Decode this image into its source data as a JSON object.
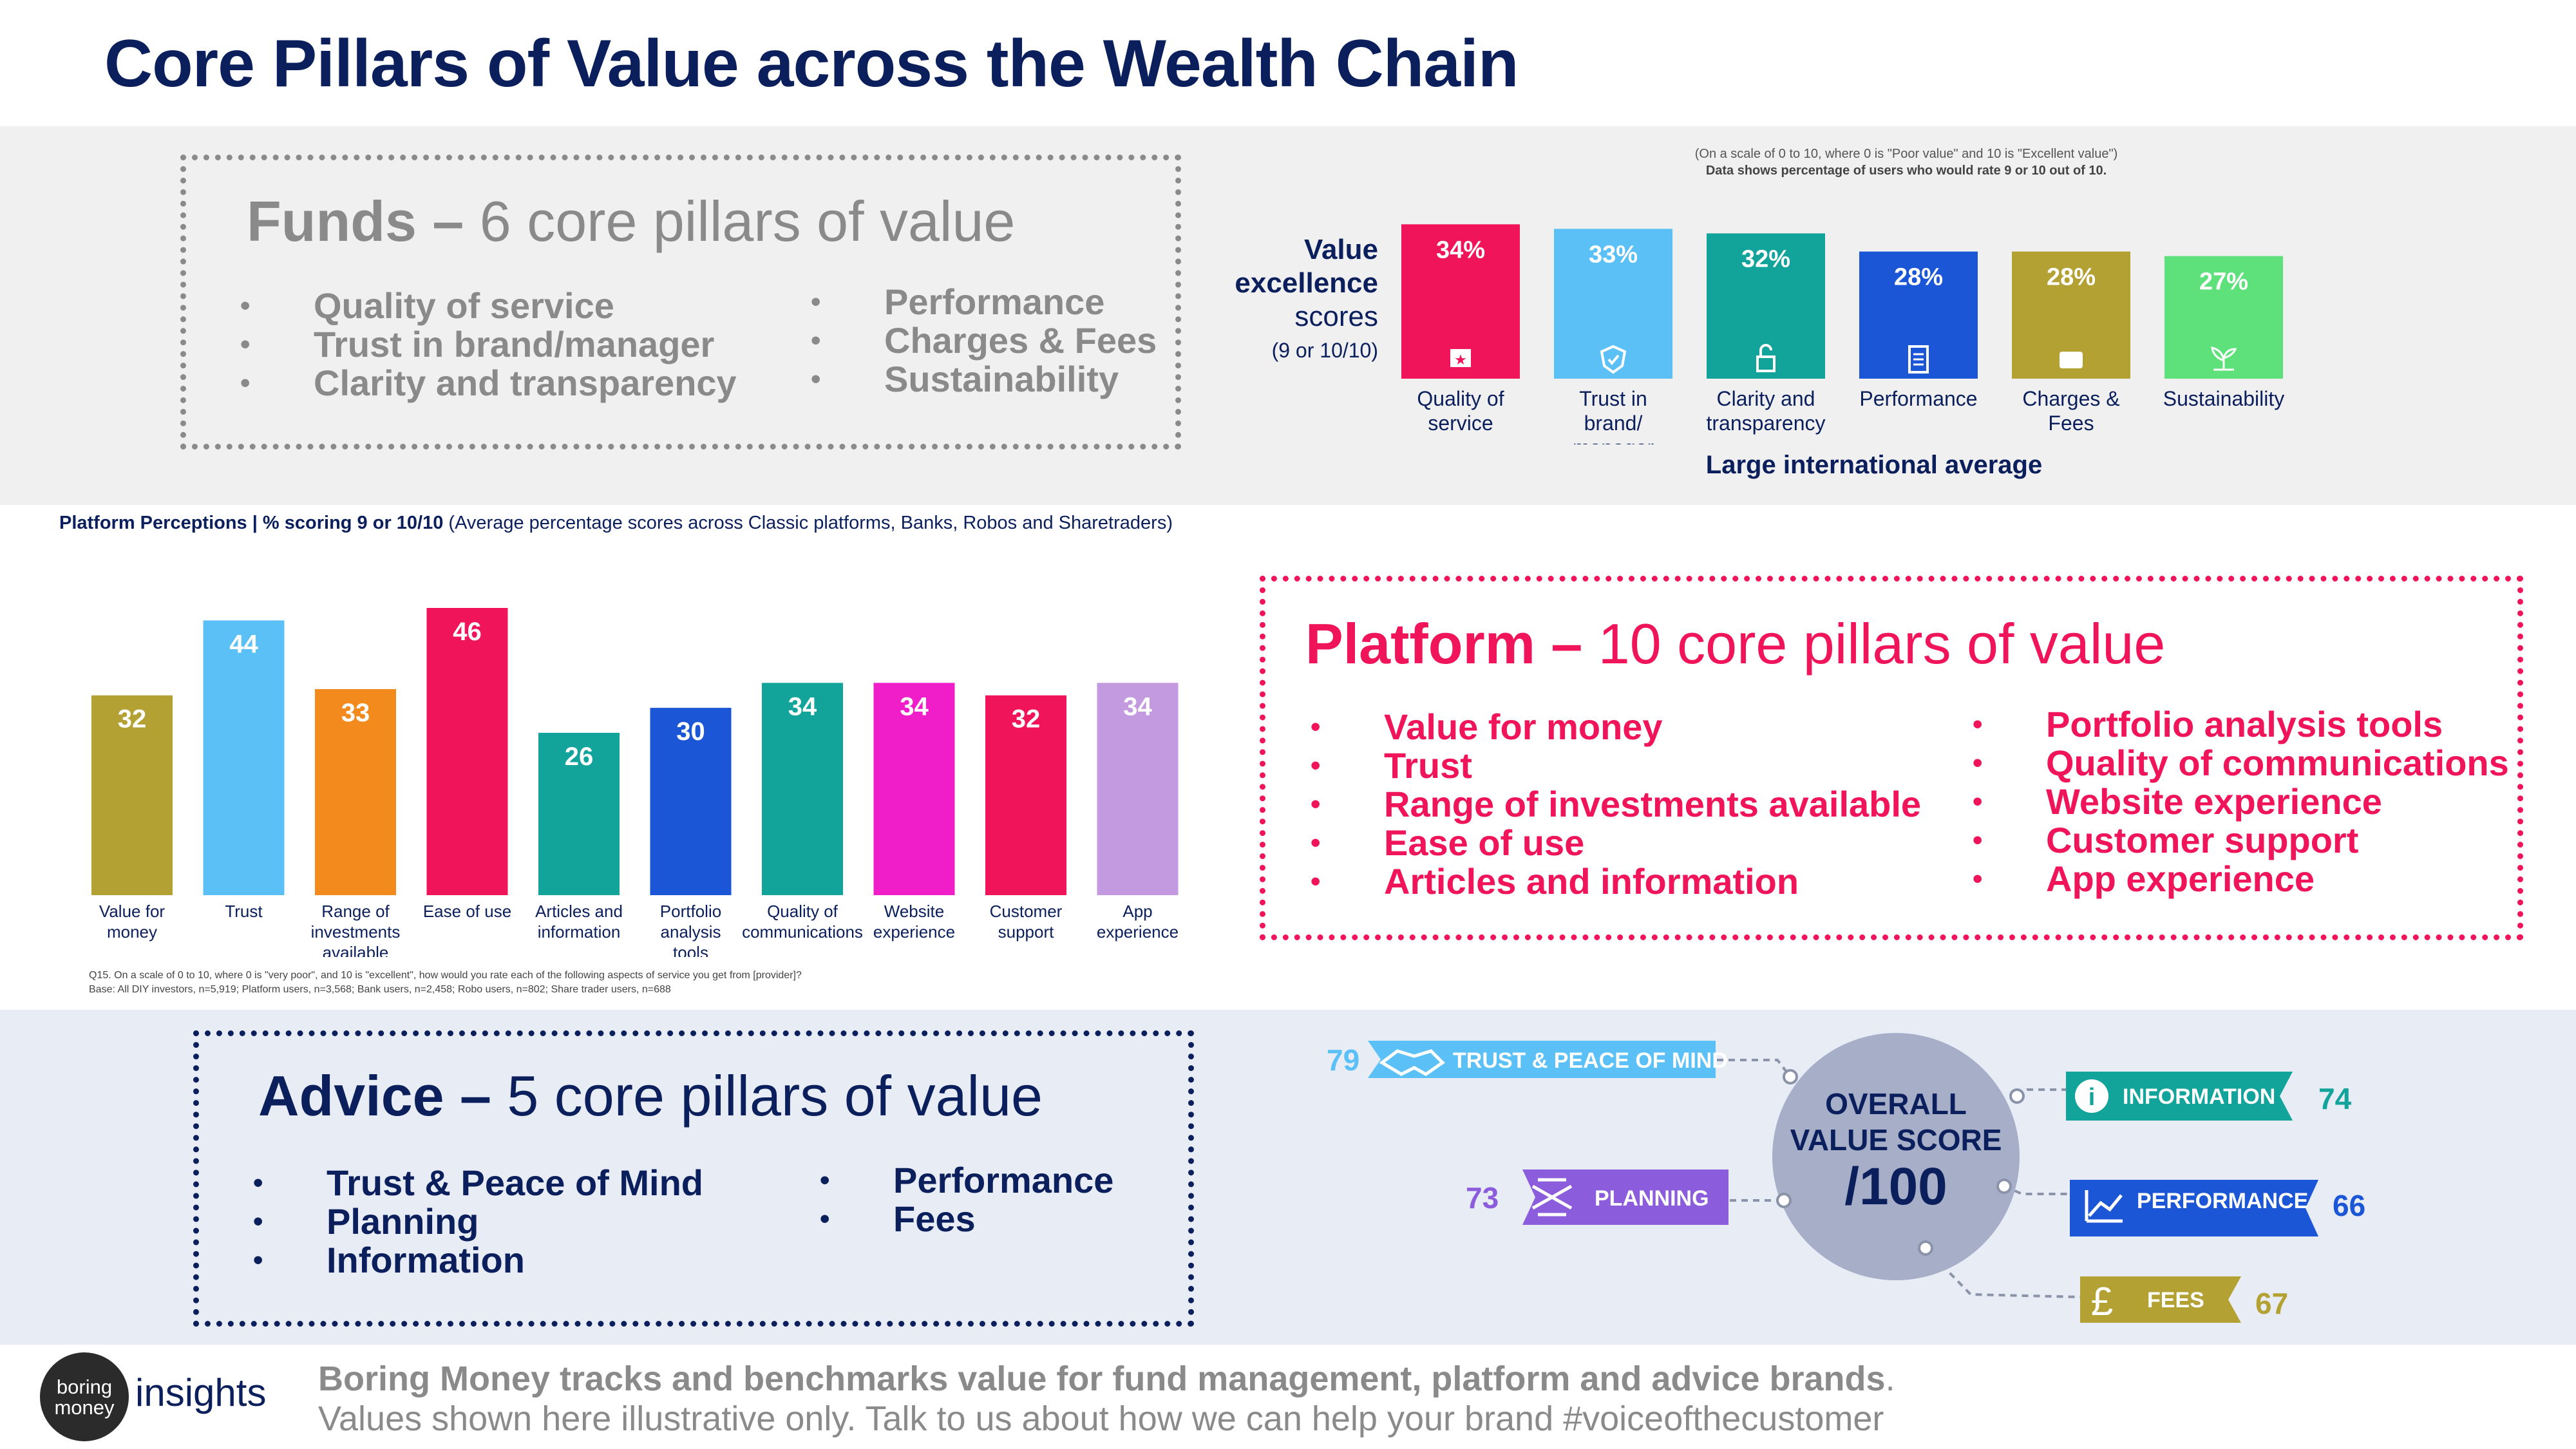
{
  "title": "Core Pillars of Value across the Wealth Chain",
  "funds": {
    "heading_bold": "Funds –",
    "heading_rest": " 6 core pillars of value",
    "pillars_left": [
      "Quality of service",
      "Trust in brand/manager",
      "Clarity and transparency"
    ],
    "pillars_right": [
      "Performance",
      "Charges & Fees",
      "Sustainability"
    ],
    "scale_note_line1": "(On a scale of 0 to 10, where 0 is \"Poor value\" and 10 is \"Excellent value\")",
    "scale_note_line2": "Data shows percentage of users who would rate 9 or 10 out of 10.",
    "value_label_bold1": "Value",
    "value_label_bold2": "excellence",
    "value_label_normal": "scores",
    "value_label_small": "(9 or 10/10)",
    "x_caption": "Large international average"
  },
  "platform": {
    "heading_bold": "Platform –",
    "heading_rest": " 10 core pillars of value",
    "pillars_left": [
      "Value for money",
      "Trust",
      "Range of investments available",
      "Ease of use",
      "Articles and information"
    ],
    "pillars_right": [
      "Portfolio analysis tools",
      "Quality of communications",
      "Website experience",
      "Customer support",
      "App experience"
    ],
    "chart_title_bold": "Platform Perceptions | % scoring 9 or 10/10",
    "chart_title_rest": " (Average percentage scores across Classic platforms, Banks, Robos and Sharetraders)",
    "question_note_line1": "Q15. On a scale of 0 to 10, where 0 is \"very poor\", and 10 is \"excellent\", how would you rate each of the following aspects of service you get from [provider]?",
    "question_note_line2": "Base: All DIY investors, n=5,919; Platform users, n=3,568; Bank users, n=2,458; Robo users, n=802; Share trader users, n=688"
  },
  "advice": {
    "heading_bold": "Advice –",
    "heading_rest": " 5 core pillars of value",
    "pillars_left": [
      "Trust & Peace of Mind",
      "Planning",
      "Information"
    ],
    "pillars_right": [
      "Performance",
      "Fees"
    ],
    "center_line1": "OVERALL",
    "center_line2": "VALUE SCORE",
    "center_line3": "/100",
    "items": [
      {
        "label": "TRUST & PEACE OF MIND",
        "score": "79",
        "color": "#5bc0f5",
        "icon": "handshake-icon"
      },
      {
        "label": "PLANNING",
        "score": "73",
        "color": "#8b5cdc",
        "icon": "tools-icon"
      },
      {
        "label": "INFORMATION",
        "score": "74",
        "color": "#12a39a",
        "icon": "info-icon"
      },
      {
        "label": "PERFORMANCE",
        "score": "66",
        "color": "#1a56d6",
        "icon": "line-chart-icon"
      },
      {
        "label": "FEES",
        "score": "67",
        "color": "#b3a233",
        "icon": "pound-icon"
      }
    ]
  },
  "footer": {
    "logo_line1": "boring",
    "logo_line2": "money",
    "logo_text": "insights",
    "line1_bold": "Boring Money tracks and benchmarks value for fund management, platform and advice brands",
    "line1_end": ".",
    "line2": "Values shown here illustrative only.  Talk to us about how we can help your brand #voiceofthecustomer"
  },
  "chart_data": [
    {
      "type": "bar",
      "categories": [
        "Quality of service",
        "Trust in brand/ manager",
        "Clarity and transparency",
        "Performance",
        "Charges & Fees",
        "Sustainability"
      ],
      "values": [
        34,
        33,
        32,
        28,
        28,
        27
      ],
      "value_labels": [
        "34%",
        "33%",
        "32%",
        "28%",
        "28%",
        "27%"
      ],
      "colors": [
        "#f0145a",
        "#5bc0f5",
        "#12a39a",
        "#1a56d6",
        "#b3a233",
        "#5ee07a"
      ],
      "icons": [
        "star-icon",
        "shield-icon",
        "lock-icon",
        "document-icon",
        "wallet-icon",
        "plant-icon"
      ],
      "xlabel": "Large international average",
      "ylim": [
        0,
        40
      ]
    },
    {
      "type": "bar",
      "categories": [
        "Value for money",
        "Trust",
        "Range of investments available",
        "Ease of use",
        "Articles and information",
        "Portfolio analysis tools",
        "Quality of communications",
        "Website experience",
        "Customer support",
        "App experience"
      ],
      "values": [
        32,
        44,
        33,
        46,
        26,
        30,
        34,
        34,
        32,
        34
      ],
      "colors": [
        "#b3a233",
        "#5bc0f5",
        "#f28a1e",
        "#f0145a",
        "#12a39a",
        "#1a56d6",
        "#12a39a",
        "#f01ec8",
        "#f0145a",
        "#c39ae0"
      ],
      "ylim": [
        0,
        50
      ]
    }
  ]
}
